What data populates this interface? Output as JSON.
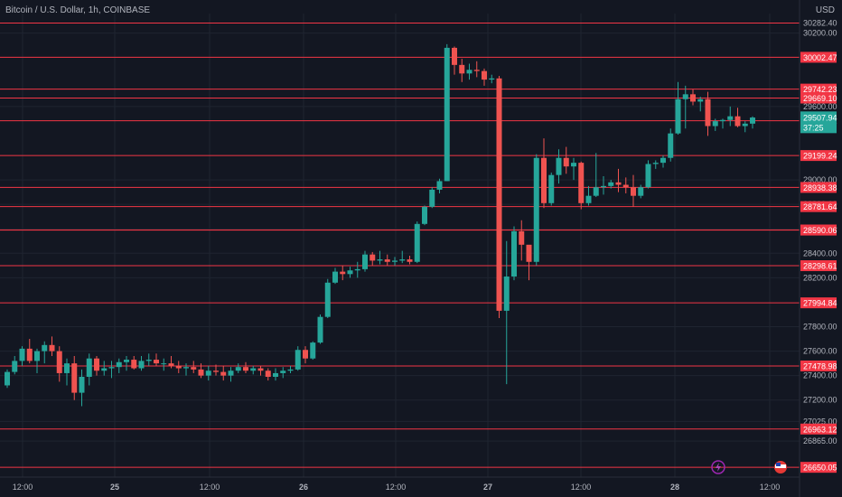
{
  "header": {
    "symbol": "Bitcoin / U.S. Dollar, 1h, COINBASE",
    "currency": "USD"
  },
  "chart_data": {
    "type": "candlestick",
    "title": "Bitcoin / U.S. Dollar, 1h, COINBASE",
    "ylabel": "USD",
    "ylim": [
      26570,
      30360
    ],
    "grid": true,
    "colors": {
      "background": "#131722",
      "up": "#26a69a",
      "down": "#ef5350",
      "line": "#f23645",
      "grid": "#1f2430",
      "text": "#b2b5be",
      "current_label": "#26a69a"
    },
    "y_ticks": [
      "30282.40",
      "30200.00",
      "29600.00",
      "29000.00",
      "28800.00",
      "28600.00",
      "28400.00",
      "28200.00",
      "27800.00",
      "27600.00",
      "27400.00",
      "27200.00",
      "27025.00",
      "26865.00"
    ],
    "x_ticks": [
      "12:00",
      "25",
      "12:00",
      "26",
      "12:00",
      "27",
      "12:00",
      "28",
      "12:00"
    ],
    "horizontal_levels": [
      30282.4,
      30002.47,
      29742.23,
      29669.1,
      29483.92,
      29199.24,
      28938.38,
      28781.64,
      28590.37,
      28590.06,
      28298.61,
      27994.84,
      27478.98,
      26963.12,
      26650.05
    ],
    "level_labels": [
      "30002.47",
      "29742.23",
      "29669.10",
      "29483.92",
      "29199.24",
      "28938.38",
      "28781.64",
      "28590.37",
      "28590.06",
      "28298.61",
      "27994.84",
      "27478.98",
      "26963.12",
      "26650.05"
    ],
    "current_price": {
      "value": "29507.94",
      "countdown": "37:25"
    },
    "candles": [
      [
        27320,
        27450,
        27300,
        27430
      ],
      [
        27430,
        27560,
        27410,
        27520
      ],
      [
        27520,
        27640,
        27480,
        27620
      ],
      [
        27620,
        27700,
        27500,
        27520
      ],
      [
        27520,
        27620,
        27420,
        27600
      ],
      [
        27600,
        27680,
        27500,
        27650
      ],
      [
        27650,
        27720,
        27560,
        27600
      ],
      [
        27600,
        27640,
        27350,
        27420
      ],
      [
        27420,
        27540,
        27320,
        27500
      ],
      [
        27500,
        27560,
        27200,
        27260
      ],
      [
        27260,
        27450,
        27150,
        27390
      ],
      [
        27390,
        27580,
        27320,
        27540
      ],
      [
        27540,
        27560,
        27400,
        27440
      ],
      [
        27440,
        27520,
        27400,
        27460
      ],
      [
        27460,
        27520,
        27380,
        27470
      ],
      [
        27470,
        27540,
        27420,
        27510
      ],
      [
        27510,
        27560,
        27440,
        27530
      ],
      [
        27530,
        27560,
        27450,
        27460
      ],
      [
        27460,
        27560,
        27440,
        27520
      ],
      [
        27520,
        27580,
        27480,
        27530
      ],
      [
        27530,
        27580,
        27480,
        27500
      ],
      [
        27500,
        27540,
        27440,
        27500
      ],
      [
        27500,
        27560,
        27460,
        27480
      ],
      [
        27480,
        27520,
        27420,
        27460
      ],
      [
        27460,
        27500,
        27400,
        27470
      ],
      [
        27470,
        27520,
        27420,
        27450
      ],
      [
        27450,
        27500,
        27380,
        27400
      ],
      [
        27400,
        27480,
        27360,
        27440
      ],
      [
        27440,
        27490,
        27400,
        27430
      ],
      [
        27430,
        27480,
        27360,
        27400
      ],
      [
        27400,
        27470,
        27350,
        27440
      ],
      [
        27440,
        27500,
        27420,
        27470
      ],
      [
        27470,
        27510,
        27420,
        27440
      ],
      [
        27440,
        27480,
        27410,
        27460
      ],
      [
        27460,
        27480,
        27400,
        27440
      ],
      [
        27440,
        27460,
        27360,
        27390
      ],
      [
        27390,
        27460,
        27360,
        27420
      ],
      [
        27420,
        27470,
        27380,
        27440
      ],
      [
        27440,
        27480,
        27420,
        27450
      ],
      [
        27450,
        27640,
        27440,
        27610
      ],
      [
        27610,
        27640,
        27500,
        27540
      ],
      [
        27540,
        27680,
        27530,
        27670
      ],
      [
        27670,
        27900,
        27660,
        27880
      ],
      [
        27880,
        28190,
        27870,
        28160
      ],
      [
        28160,
        28280,
        28150,
        28250
      ],
      [
        28250,
        28300,
        28180,
        28230
      ],
      [
        28230,
        28290,
        28200,
        28260
      ],
      [
        28260,
        28330,
        28200,
        28270
      ],
      [
        28270,
        28420,
        28250,
        28390
      ],
      [
        28390,
        28410,
        28300,
        28340
      ],
      [
        28340,
        28420,
        28310,
        28350
      ],
      [
        28350,
        28390,
        28300,
        28330
      ],
      [
        28330,
        28370,
        28300,
        28340
      ],
      [
        28340,
        28420,
        28320,
        28350
      ],
      [
        28350,
        28380,
        28310,
        28330
      ],
      [
        28330,
        28660,
        28320,
        28640
      ],
      [
        28640,
        28790,
        28630,
        28780
      ],
      [
        28780,
        28940,
        28770,
        28920
      ],
      [
        28920,
        29010,
        28890,
        28990
      ],
      [
        28990,
        30110,
        28990,
        30080
      ],
      [
        30080,
        30090,
        29860,
        29940
      ],
      [
        29940,
        29990,
        29800,
        29870
      ],
      [
        29870,
        29950,
        29820,
        29900
      ],
      [
        29900,
        29970,
        29840,
        29890
      ],
      [
        29890,
        29910,
        29770,
        29820
      ],
      [
        29820,
        29860,
        29790,
        29830
      ],
      [
        29830,
        29850,
        27870,
        27930
      ],
      [
        27930,
        28500,
        27330,
        28210
      ],
      [
        28210,
        28620,
        28180,
        28580
      ],
      [
        28580,
        28670,
        28340,
        28470
      ],
      [
        28470,
        28460,
        28180,
        28330
      ],
      [
        28330,
        29210,
        28300,
        29180
      ],
      [
        29180,
        29340,
        28770,
        28810
      ],
      [
        28810,
        29060,
        28790,
        29040
      ],
      [
        29040,
        29250,
        28970,
        29180
      ],
      [
        29180,
        29270,
        29050,
        29110
      ],
      [
        29110,
        29180,
        29000,
        29140
      ],
      [
        29140,
        29150,
        28760,
        28810
      ],
      [
        28810,
        28950,
        28790,
        28870
      ],
      [
        28870,
        29220,
        28860,
        28940
      ],
      [
        28940,
        29030,
        28880,
        28950
      ],
      [
        28950,
        29000,
        28930,
        28980
      ],
      [
        28980,
        29090,
        28900,
        28960
      ],
      [
        28960,
        29020,
        28890,
        28940
      ],
      [
        28940,
        29040,
        28780,
        28870
      ],
      [
        28870,
        28960,
        28850,
        28940
      ],
      [
        28940,
        29160,
        28930,
        29130
      ],
      [
        29130,
        29160,
        29090,
        29140
      ],
      [
        29140,
        29200,
        29100,
        29180
      ],
      [
        29180,
        29420,
        29150,
        29380
      ],
      [
        29380,
        29800,
        29370,
        29660
      ],
      [
        29660,
        29770,
        29420,
        29700
      ],
      [
        29700,
        29740,
        29610,
        29640
      ],
      [
        29640,
        29680,
        29560,
        29660
      ],
      [
        29660,
        29720,
        29360,
        29440
      ],
      [
        29440,
        29500,
        29400,
        29480
      ],
      [
        29480,
        29500,
        29420,
        29490
      ],
      [
        29490,
        29600,
        29440,
        29520
      ],
      [
        29520,
        29590,
        29430,
        29440
      ],
      [
        29440,
        29480,
        29390,
        29460
      ],
      [
        29460,
        29520,
        29420,
        29510
      ]
    ],
    "indicator_icons": [
      "lightning-icon",
      "us-flag-icon"
    ]
  }
}
